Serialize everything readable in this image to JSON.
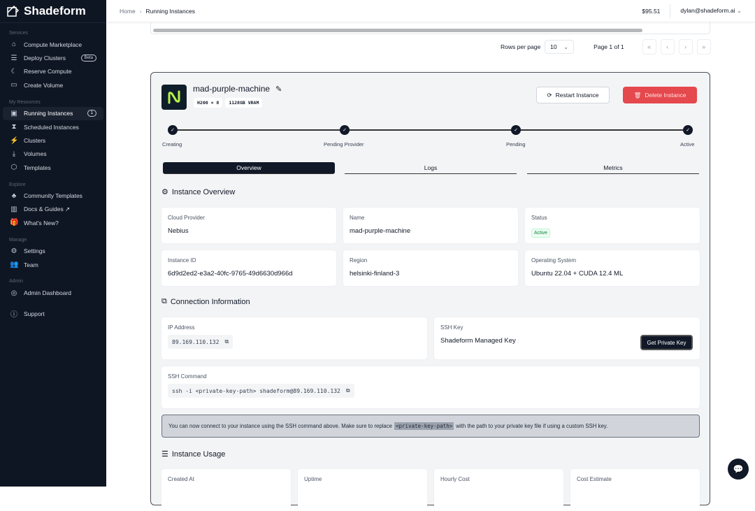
{
  "brand": {
    "name": "Shadeform"
  },
  "sidebar": {
    "sections": [
      {
        "label": "Services",
        "items": [
          {
            "label": "Compute Marketplace",
            "icon": "store-icon"
          },
          {
            "label": "Deploy Clusters",
            "icon": "server-icon",
            "badge": "Beta"
          },
          {
            "label": "Reserve Compute",
            "icon": "moon-icon"
          },
          {
            "label": "Create Volume",
            "icon": "drive-icon"
          }
        ]
      },
      {
        "label": "My Resources",
        "items": [
          {
            "label": "Running Instances",
            "icon": "cpu-icon",
            "badge": "1",
            "active": true
          },
          {
            "label": "Scheduled Instances",
            "icon": "hourglass-icon"
          },
          {
            "label": "Clusters",
            "icon": "cluster-icon"
          },
          {
            "label": "Volumes",
            "icon": "download-icon"
          },
          {
            "label": "Templates",
            "icon": "box-icon"
          }
        ]
      },
      {
        "label": "Explore",
        "items": [
          {
            "label": "Community Templates",
            "icon": "community-icon"
          },
          {
            "label": "Docs & Guides ↗",
            "icon": "book-icon"
          },
          {
            "label": "What's New?",
            "icon": "gift-icon"
          }
        ]
      },
      {
        "label": "Manage",
        "items": [
          {
            "label": "Settings",
            "icon": "gear-icon"
          },
          {
            "label": "Team",
            "icon": "users-icon"
          }
        ]
      },
      {
        "label": "Admin",
        "items": [
          {
            "label": "Admin Dashboard",
            "icon": "dashboard-icon"
          }
        ]
      }
    ],
    "support": "Support"
  },
  "header": {
    "breadcrumb": [
      "Home",
      "Running Instances"
    ],
    "balance": "$95.51",
    "user": "dylan@shadeform.ai"
  },
  "pagination": {
    "rows_label": "Rows per page",
    "rows_value": "10",
    "page_label": "Page 1 of 1"
  },
  "instance": {
    "name": "mad-purple-machine",
    "gpu": "H200 × 8",
    "vram": "1128GB VRAM",
    "restart": "Restart Instance",
    "delete": "Delete Instance",
    "steps": [
      "Creating",
      "Pending Provider",
      "Pending",
      "Active"
    ],
    "tabs": [
      "Overview",
      "Logs",
      "Metrics"
    ],
    "overview_title": "Instance Overview",
    "fields": [
      {
        "label": "Cloud Provider",
        "value": "Nebius"
      },
      {
        "label": "Name",
        "value": "mad-purple-machine"
      },
      {
        "label": "Status",
        "value": "Active"
      },
      {
        "label": "Instance ID",
        "value": "6d9d2ed2-e3a2-40fc-9765-49d6630d966d"
      },
      {
        "label": "Region",
        "value": "helsinki-finland-3"
      },
      {
        "label": "Operating System",
        "value": "Ubuntu 22.04 + CUDA 12.4 ML"
      }
    ],
    "connection_title": "Connection Information",
    "ip_label": "IP Address",
    "ip": "89.169.110.132",
    "ssh_key_label": "SSH Key",
    "ssh_key": "Shadeform Managed Key",
    "get_key": "Get Private Key",
    "ssh_cmd_label": "SSH Command",
    "ssh_cmd": "ssh -i <private-key-path> shadeform@89.169.110.132",
    "note_pre": "You can now connect to your instance using the SSH command above. Make sure to replace",
    "note_code": "<private-key-path>",
    "note_post": "with the path to your private key file if using a custom SSH key.",
    "usage_title": "Instance Usage",
    "usage": [
      "Created At",
      "Uptime",
      "Hourly Cost",
      "Cost Estimate"
    ]
  },
  "colors": {
    "sidebar": "#0f1623",
    "danger": "#e5484d",
    "accent": "#b8f34a"
  }
}
